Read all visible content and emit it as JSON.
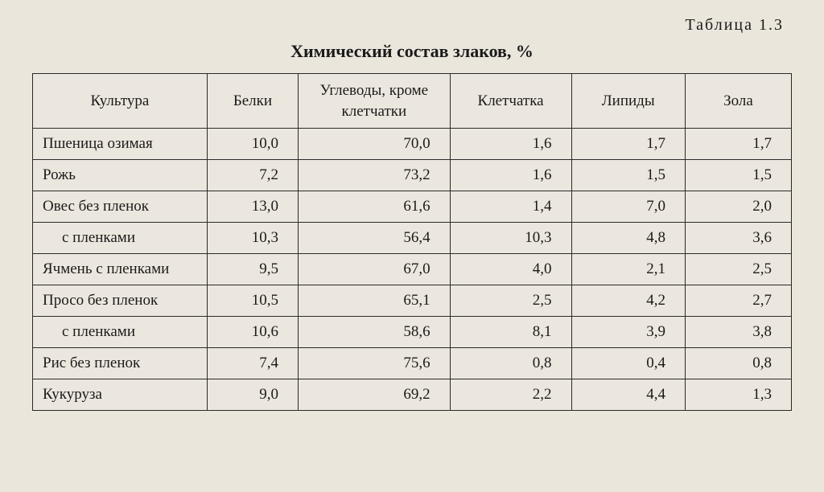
{
  "table_label": "Таблица 1.3",
  "title": "Химический состав злаков, %",
  "columns": [
    "Культура",
    "Белки",
    "Углеводы, кроме клетчатки",
    "Клетчатка",
    "Липиды",
    "Зола"
  ],
  "rows": [
    {
      "label": "Пшеница озимая",
      "indent": false,
      "values": [
        "10,0",
        "70,0",
        "1,6",
        "1,7",
        "1,7"
      ]
    },
    {
      "label": "Рожь",
      "indent": false,
      "values": [
        "7,2",
        "73,2",
        "1,6",
        "1,5",
        "1,5"
      ]
    },
    {
      "label": "Овес без пленок",
      "indent": false,
      "values": [
        "13,0",
        "61,6",
        "1,4",
        "7,0",
        "2,0"
      ]
    },
    {
      "label": "с пленками",
      "indent": true,
      "values": [
        "10,3",
        "56,4",
        "10,3",
        "4,8",
        "3,6"
      ]
    },
    {
      "label": "Ячмень с пленками",
      "indent": false,
      "values": [
        "9,5",
        "67,0",
        "4,0",
        "2,1",
        "2,5"
      ]
    },
    {
      "label": "Просо без пленок",
      "indent": false,
      "values": [
        "10,5",
        "65,1",
        "2,5",
        "4,2",
        "2,7"
      ]
    },
    {
      "label": "с пленками",
      "indent": true,
      "values": [
        "10,6",
        "58,6",
        "8,1",
        "3,9",
        "3,8"
      ]
    },
    {
      "label": "Рис без пленок",
      "indent": false,
      "values": [
        "7,4",
        "75,6",
        "0,8",
        "0,4",
        "0,8"
      ]
    },
    {
      "label": "Кукуруза",
      "indent": false,
      "values": [
        "9,0",
        "69,2",
        "2,2",
        "4,4",
        "1,3"
      ]
    }
  ],
  "style": {
    "background_color": "#ebe6dc",
    "text_color": "#1a1a1a",
    "border_color": "#2a2a2a",
    "font_family": "Times New Roman",
    "title_fontsize": 22,
    "label_fontsize": 20,
    "cell_fontsize": 19,
    "col_widths_pct": [
      23,
      12,
      20,
      16,
      15,
      14
    ]
  }
}
